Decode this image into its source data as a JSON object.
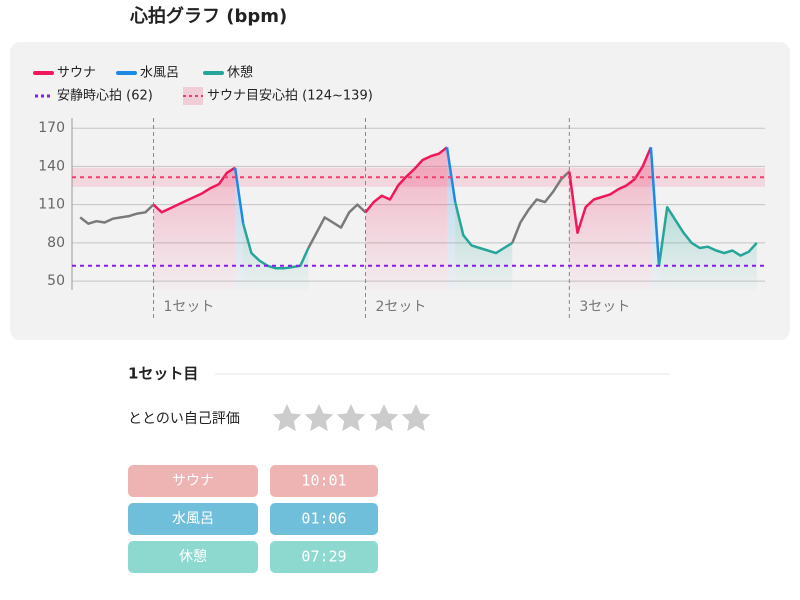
{
  "header": {
    "title": "心拍グラフ (bpm)"
  },
  "chart_data": {
    "type": "line",
    "x": [
      1,
      2,
      3,
      4,
      5,
      6,
      7,
      8,
      9,
      10,
      11,
      12,
      13,
      14,
      15,
      16,
      17,
      18,
      19,
      20,
      21,
      22,
      23,
      24,
      25,
      26,
      27,
      28,
      29,
      30,
      31,
      32,
      33,
      34,
      35,
      36,
      37,
      38,
      39,
      40,
      41,
      42,
      43,
      44,
      45,
      46,
      47,
      48,
      49,
      50,
      51,
      52,
      53,
      54,
      55,
      56,
      57,
      58,
      59,
      60,
      61,
      62,
      63,
      64,
      65,
      66,
      67,
      68,
      69,
      70,
      71,
      72,
      73,
      74,
      75,
      76,
      77,
      78,
      79,
      80,
      81,
      82,
      83,
      84
    ],
    "xlim": [
      0,
      85
    ],
    "ylim": [
      43,
      178
    ],
    "yticks": [
      50,
      80,
      110,
      140,
      170
    ],
    "grid": true,
    "series": [
      {
        "color": "#7a7a7a",
        "values": [
          100,
          95,
          97,
          96,
          99,
          100,
          101,
          103,
          104,
          110,
          null,
          null,
          null,
          null,
          null,
          null,
          null,
          null,
          null,
          null,
          null,
          null,
          null,
          null,
          null,
          null,
          null,
          null,
          76,
          88,
          100,
          96,
          92,
          104,
          110,
          104,
          null,
          null,
          null,
          null,
          null,
          null,
          null,
          null,
          null,
          null,
          null,
          null,
          null,
          null,
          null,
          null,
          null,
          80,
          96,
          106,
          114,
          112,
          120,
          130,
          136,
          null,
          null,
          null,
          null,
          null,
          null,
          null,
          null,
          null,
          null,
          null,
          null,
          null,
          null,
          null,
          null,
          null,
          null,
          null,
          null,
          null,
          null,
          null
        ]
      },
      {
        "name": "サウナ",
        "color": "#f0185a",
        "values": [
          null,
          null,
          null,
          null,
          null,
          null,
          null,
          null,
          null,
          110,
          104,
          107,
          110,
          113,
          116,
          119,
          123,
          126,
          135,
          139,
          null,
          null,
          null,
          null,
          null,
          null,
          null,
          null,
          null,
          null,
          null,
          null,
          null,
          null,
          null,
          104,
          112,
          117,
          114,
          125,
          132,
          138,
          145,
          148,
          150,
          155,
          null,
          null,
          null,
          null,
          null,
          null,
          null,
          null,
          null,
          null,
          null,
          null,
          null,
          null,
          136,
          88,
          108,
          114,
          116,
          118,
          122,
          125,
          130,
          140,
          155,
          null,
          null,
          null,
          null,
          null,
          null,
          null,
          null,
          null,
          null,
          null,
          null,
          null
        ]
      },
      {
        "name": "水風呂",
        "color": "#1e88e5",
        "values": [
          null,
          null,
          null,
          null,
          null,
          null,
          null,
          null,
          null,
          null,
          null,
          null,
          null,
          null,
          null,
          null,
          null,
          null,
          null,
          139,
          95,
          null,
          null,
          null,
          null,
          null,
          null,
          null,
          null,
          null,
          null,
          null,
          null,
          null,
          null,
          null,
          null,
          null,
          null,
          null,
          null,
          null,
          null,
          null,
          null,
          155,
          112,
          null,
          null,
          null,
          null,
          null,
          null,
          null,
          null,
          null,
          null,
          null,
          null,
          null,
          null,
          null,
          null,
          null,
          null,
          null,
          null,
          null,
          null,
          null,
          155,
          62,
          null,
          null,
          null,
          null,
          null,
          null,
          null,
          null,
          null,
          null,
          null,
          null
        ]
      },
      {
        "name": "休憩",
        "color": "#26a69a",
        "values": [
          null,
          null,
          null,
          null,
          null,
          null,
          null,
          null,
          null,
          null,
          null,
          null,
          null,
          null,
          null,
          null,
          null,
          null,
          null,
          null,
          95,
          72,
          66,
          62,
          60,
          60,
          61,
          62,
          76,
          null,
          null,
          null,
          null,
          null,
          null,
          null,
          null,
          null,
          null,
          null,
          null,
          null,
          null,
          null,
          null,
          null,
          112,
          86,
          78,
          76,
          74,
          72,
          76,
          80,
          null,
          null,
          null,
          null,
          null,
          null,
          null,
          null,
          null,
          null,
          null,
          null,
          null,
          null,
          null,
          null,
          null,
          62,
          108,
          98,
          88,
          80,
          76,
          77,
          74,
          72,
          74,
          70,
          73,
          80
        ]
      }
    ],
    "reference_lines": [
      {
        "label": "安静時心拍 (62)",
        "value": 62,
        "color": "#8a1be2"
      }
    ],
    "target_band": {
      "label": "サウナ目安心拍 (124~139)",
      "range": [
        124,
        139
      ],
      "color": "#f03c6e"
    },
    "x_markers": [
      {
        "value": 10,
        "label": "1セット"
      },
      {
        "value": 36,
        "label": "2セット"
      },
      {
        "value": 61,
        "label": "3セット"
      }
    ]
  },
  "section": {
    "title": "1セット目"
  },
  "rating": {
    "label": "ととのい自己評価"
  },
  "table": {
    "rows": [
      [
        "サウナ",
        "10:01"
      ],
      [
        "水風呂",
        "01:06"
      ],
      [
        "休憩",
        "07:29"
      ]
    ]
  }
}
